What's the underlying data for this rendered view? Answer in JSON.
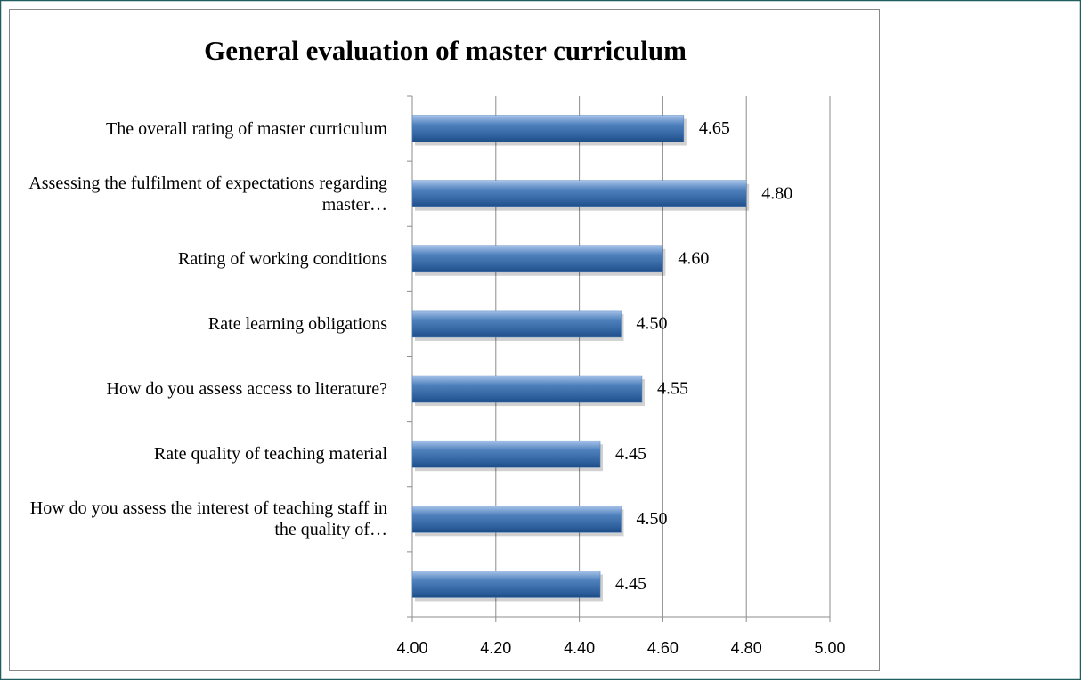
{
  "chart_data": {
    "type": "bar",
    "orientation": "horizontal",
    "title": "General evaluation of master curriculum",
    "categories": [
      "The overall rating of master curriculum",
      "Assessing the fulfilment of expectations regarding master…",
      "Rating of working conditions",
      "Rate learning obligations",
      "How do you assess access to literature?",
      "Rate quality of teaching material",
      "How do you assess the interest of teaching staff in the quality of…",
      null
    ],
    "values": [
      4.65,
      4.8,
      4.6,
      4.5,
      4.55,
      4.45,
      4.5,
      4.45
    ],
    "value_labels": [
      "4.65",
      "4.80",
      "4.60",
      "4.50",
      "4.55",
      "4.45",
      "4.50",
      "4.45"
    ],
    "color": "#4f81bd",
    "xlim": [
      4,
      5
    ],
    "xticks": [
      {
        "value": 4,
        "label": "4.00"
      },
      {
        "value": 4.2,
        "label": "4.20"
      },
      {
        "value": 4.4,
        "label": "4.40"
      },
      {
        "value": 4.6,
        "label": "4.60"
      },
      {
        "value": 4.8,
        "label": "4.80"
      },
      {
        "value": 5,
        "label": "5.00"
      }
    ],
    "grid": true
  }
}
